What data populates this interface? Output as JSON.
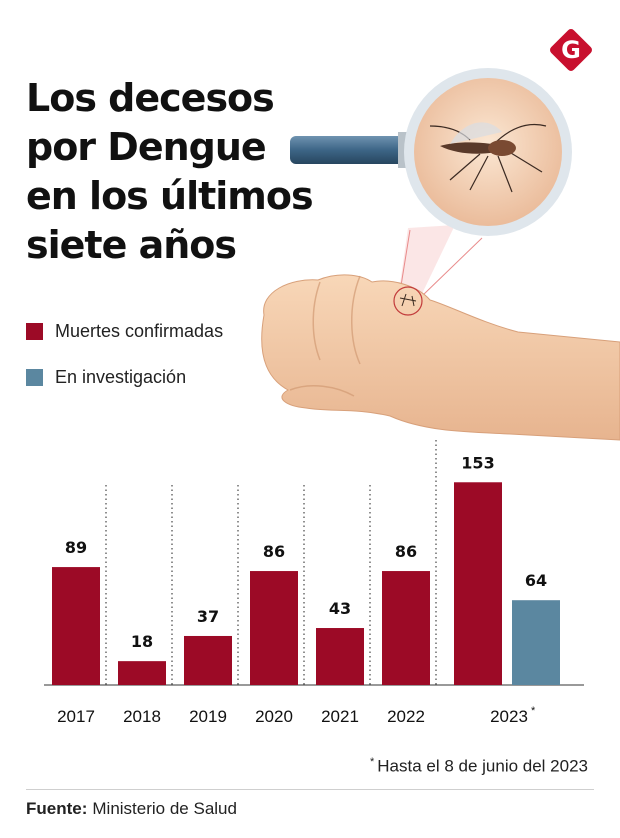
{
  "brand": {
    "logo_letter": "G",
    "logo_color": "#c8102e"
  },
  "title_lines": [
    "Los decesos",
    "por Dengue",
    "en los últimos",
    "siete años"
  ],
  "legend": [
    {
      "label": "Muertes confirmadas",
      "color": "#9c0a26"
    },
    {
      "label": "En investigación",
      "color": "#5b87a0"
    }
  ],
  "illustration": "magnifying-glass-mosquito-on-hand",
  "chart_data": {
    "type": "bar",
    "categories": [
      "2017",
      "2018",
      "2019",
      "2020",
      "2021",
      "2022",
      "2023"
    ],
    "category_marks": [
      "",
      "",
      "",
      "",
      "",
      "",
      "*"
    ],
    "series": [
      {
        "name": "Muertes confirmadas",
        "color": "#9c0a26",
        "values": [
          89,
          18,
          37,
          86,
          43,
          86,
          153
        ]
      },
      {
        "name": "En investigación",
        "color": "#5b87a0",
        "values": [
          null,
          null,
          null,
          null,
          null,
          null,
          64
        ]
      }
    ],
    "ylim": [
      0,
      160
    ],
    "grid": false,
    "legend_position": "top-left"
  },
  "footnote": {
    "mark": "*",
    "text": "Hasta el 8 de junio del 2023"
  },
  "source": {
    "label": "Fuente:",
    "text": "Ministerio de Salud"
  }
}
